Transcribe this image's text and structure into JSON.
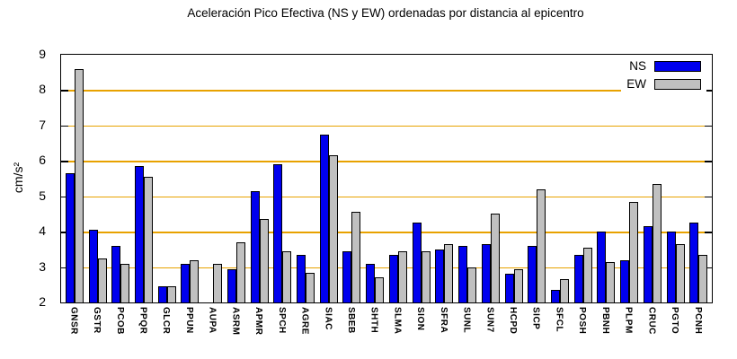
{
  "title": "Aceleración Pico Efectiva (NS y EW) ordenadas por distancia al epicentro",
  "y_axis": {
    "label": "cm/s²",
    "ticks": [
      9,
      8,
      7,
      6,
      5,
      4,
      3,
      2
    ]
  },
  "colors": {
    "ns_blue": "#0000EE",
    "ew_gray": "#C0C0C0",
    "grid_orange": "#E8A200",
    "axis_black": "#000000",
    "background": "#FFFFFF"
  },
  "chart_data": {
    "type": "bar",
    "title": "Aceleración Pico Efectiva (NS y EW) ordenadas por distancia al epicentro",
    "xlabel": "",
    "ylabel": "cm/s²",
    "ylim": [
      2,
      9
    ],
    "grid": "horizontal orange lines at integer ticks 3-8",
    "legend_position": "top-right",
    "categories": [
      "GNSR",
      "GSTR",
      "PCOB",
      "PPQR",
      "GLCR",
      "PPUN",
      "AUPA",
      "ASRM",
      "APMR",
      "SPCH",
      "AGRE",
      "SIAC",
      "SBEB",
      "SHTH",
      "SLMA",
      "SION",
      "SFRA",
      "SUNL",
      "SUN7",
      "HCPD",
      "SICP",
      "SFCL",
      "POSH",
      "PBNH",
      "PLPM",
      "CRUC",
      "PGTO",
      "PCNH"
    ],
    "series": [
      {
        "name": "NS",
        "color": "#0000EE",
        "values": [
          5.65,
          4.05,
          3.6,
          5.85,
          2.45,
          3.1,
          null,
          2.95,
          5.15,
          5.9,
          3.35,
          6.75,
          3.45,
          3.1,
          3.35,
          4.25,
          3.5,
          3.6,
          3.65,
          2.8,
          3.6,
          2.35,
          3.35,
          4.0,
          3.2,
          4.15,
          4.0,
          4.25
        ]
      },
      {
        "name": "EW",
        "color": "#C0C0C0",
        "values": [
          8.6,
          3.25,
          3.1,
          5.55,
          2.45,
          3.2,
          3.1,
          3.7,
          4.35,
          3.45,
          2.85,
          6.15,
          4.55,
          2.7,
          3.45,
          3.45,
          3.65,
          3.0,
          4.5,
          2.95,
          5.2,
          2.65,
          3.55,
          3.15,
          4.85,
          5.35,
          3.65,
          3.35
        ]
      }
    ]
  }
}
